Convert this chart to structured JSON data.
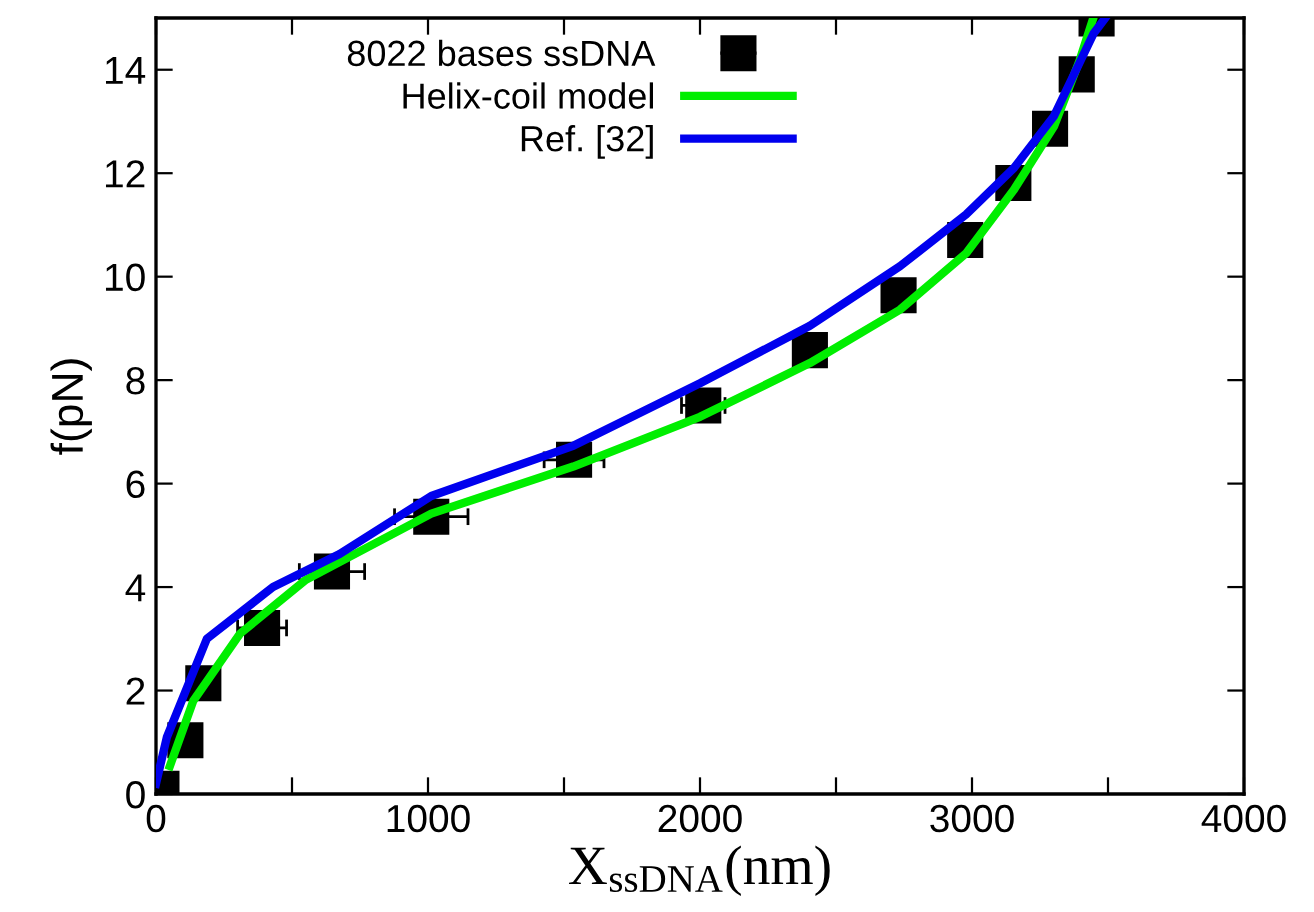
{
  "chart_data": {
    "type": "line",
    "xlabel": "X$_{ssDNA}$(nm)",
    "ylabel": "f(pN)",
    "xlim": [
      0,
      4000
    ],
    "ylim": [
      0,
      15
    ],
    "xticks": [
      0,
      {
        "value": 500,
        "label": null
      },
      1000,
      {
        "value": 1500,
        "label": null
      },
      2000,
      {
        "value": 2500,
        "label": null
      },
      3000,
      {
        "value": 3500,
        "label": null
      },
      4000
    ],
    "yticks": [
      0,
      2,
      4,
      6,
      8,
      10,
      12,
      14
    ],
    "grid": false,
    "legend": "top",
    "series": [
      {
        "name": "8022 bases ssDNA",
        "type": "scatter",
        "marker": "square",
        "color": "#000000",
        "x": [
          20,
          108,
          174,
          390,
          647,
          1012,
          1537,
          2012,
          2404,
          2730,
          2975,
          3152,
          3287,
          3385,
          3458
        ],
        "values": [
          0.1,
          1.04,
          2.14,
          3.21,
          4.3,
          5.36,
          6.46,
          7.51,
          8.58,
          9.64,
          10.71,
          11.81,
          12.86,
          13.91,
          14.99
        ],
        "xerrors": [
          null,
          null,
          null,
          90,
          120,
          135,
          110,
          80,
          null,
          null,
          null,
          null,
          null,
          null,
          null
        ]
      },
      {
        "name": "Helix-coil model",
        "marker": "none",
        "line_style": "solid",
        "color": "#00ee00",
        "x": [
          51,
          137,
          309,
          551,
          1012,
          1534,
          2000,
          2404,
          2735,
          2978,
          3154,
          3301,
          3397,
          3446
        ],
        "values": [
          0.54,
          1.8,
          3.1,
          4.14,
          5.42,
          6.33,
          7.29,
          8.33,
          9.36,
          10.45,
          11.68,
          12.9,
          14.2,
          15
        ]
      },
      {
        "name": "Ref. [32]",
        "marker": "none",
        "line_style": "solid",
        "color": "#0000ee",
        "x": [
          0,
          40,
          187,
          430,
          675,
          1012,
          1534,
          2000,
          2404,
          2735,
          2978,
          3154,
          3301,
          3447,
          3490
        ],
        "values": [
          0.2,
          1.1,
          3.0,
          4.0,
          4.64,
          5.76,
          6.73,
          7.94,
          9.05,
          10.2,
          11.2,
          12.1,
          13.1,
          14.7,
          15
        ]
      }
    ]
  }
}
